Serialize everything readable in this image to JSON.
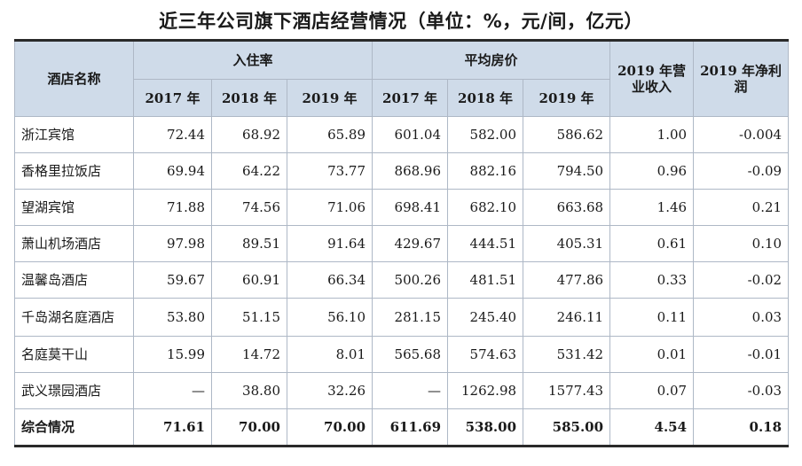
{
  "title": "近三年公司旗下酒店经营情况（单位：%，元/间，亿元）",
  "header": {
    "name": "酒店名称",
    "occupancy": "入住率",
    "avg_price": "平均房价",
    "revenue": "2019 年营业收入",
    "profit": "2019 年净利润",
    "years": [
      "2017 年",
      "2018 年",
      "2019 年"
    ]
  },
  "rows": [
    {
      "name": "浙江宾馆",
      "occ": [
        "72.44",
        "68.92",
        "65.89"
      ],
      "price": [
        "601.04",
        "582.00",
        "586.62"
      ],
      "revenue": "1.00",
      "profit": "-0.004"
    },
    {
      "name": "香格里拉饭店",
      "occ": [
        "69.94",
        "64.22",
        "73.77"
      ],
      "price": [
        "868.96",
        "882.16",
        "794.50"
      ],
      "revenue": "0.96",
      "profit": "-0.09"
    },
    {
      "name": "望湖宾馆",
      "occ": [
        "71.88",
        "74.56",
        "71.06"
      ],
      "price": [
        "698.41",
        "682.10",
        "663.68"
      ],
      "revenue": "1.46",
      "profit": "0.21"
    },
    {
      "name": "萧山机场酒店",
      "occ": [
        "97.98",
        "89.51",
        "91.64"
      ],
      "price": [
        "429.67",
        "444.51",
        "405.31"
      ],
      "revenue": "0.61",
      "profit": "0.10"
    },
    {
      "name": "温馨岛酒店",
      "occ": [
        "59.67",
        "60.91",
        "66.34"
      ],
      "price": [
        "500.26",
        "481.51",
        "477.86"
      ],
      "revenue": "0.33",
      "profit": "-0.02"
    },
    {
      "name": "千岛湖名庭酒店",
      "occ": [
        "53.80",
        "51.15",
        "56.10"
      ],
      "price": [
        "281.15",
        "245.40",
        "246.11"
      ],
      "revenue": "0.11",
      "profit": "0.03"
    },
    {
      "name": "名庭莫干山",
      "occ": [
        "15.99",
        "14.72",
        "8.01"
      ],
      "price": [
        "565.68",
        "574.63",
        "531.42"
      ],
      "revenue": "0.01",
      "profit": "-0.01"
    },
    {
      "name": "武义璟园酒店",
      "occ": [
        "—",
        "38.80",
        "32.26"
      ],
      "price": [
        "—",
        "1262.98",
        "1577.43"
      ],
      "revenue": "0.07",
      "profit": "-0.03"
    },
    {
      "name": "综合情况",
      "occ": [
        "71.61",
        "70.00",
        "70.00"
      ],
      "price": [
        "611.69",
        "538.00",
        "585.00"
      ],
      "revenue": "4.54",
      "profit": "0.18"
    }
  ]
}
